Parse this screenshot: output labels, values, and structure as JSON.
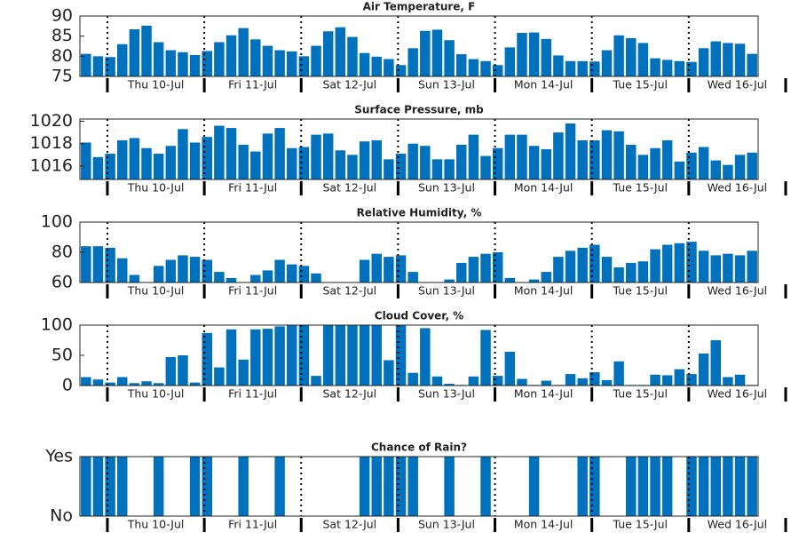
{
  "chart_data": [
    {
      "type": "bar",
      "title": "Air Temperature, F",
      "color": "#0072bd",
      "xtick_labels": [
        "Thu 10-Jul",
        "Fri 11-Jul",
        "Sat 12-Jul",
        "Sun 13-Jul",
        "Mon 14-Jul",
        "Tue 15-Jul",
        "Wed 16-Jul"
      ],
      "values": [
        80.6,
        80,
        79.8,
        83,
        86.7,
        87.6,
        83.5,
        81.5,
        81,
        80.3,
        81.3,
        83.5,
        85.2,
        87,
        84.2,
        82.6,
        81.5,
        81.2,
        80,
        82.6,
        86.2,
        87.2,
        84.8,
        80.8,
        79.9,
        79.3,
        77.8,
        82,
        86.3,
        86.6,
        84,
        80.5,
        79.3,
        78.8,
        77.8,
        82.2,
        85.8,
        85.9,
        84.3,
        80.2,
        78.8,
        78.8,
        78.7,
        81.5,
        85.2,
        84.5,
        83.3,
        79.5,
        79.1,
        78.8,
        78.6,
        82,
        83.7,
        83.3,
        83.1,
        80.6
      ],
      "ylim": [
        75,
        90
      ],
      "yticks": [
        75,
        80,
        85,
        90
      ]
    },
    {
      "type": "bar",
      "title": "Surface Pressure, mb",
      "color": "#0072bd",
      "xtick_labels": [
        "Thu 10-Jul",
        "Fri 11-Jul",
        "Sat 12-Jul",
        "Sun 13-Jul",
        "Mon 14-Jul",
        "Tue 15-Jul",
        "Wed 16-Jul"
      ],
      "values": [
        1018.1,
        1016.8,
        1017.1,
        1018.3,
        1018.5,
        1017.6,
        1017.1,
        1017.8,
        1019.3,
        1018.1,
        1018.6,
        1019.6,
        1019.4,
        1017.9,
        1017.3,
        1018.9,
        1019.4,
        1017.6,
        1017.7,
        1018.8,
        1018.9,
        1017.4,
        1017.0,
        1018.2,
        1018.3,
        1016.6,
        1017.1,
        1018.0,
        1017.8,
        1016.6,
        1016.6,
        1017.9,
        1018.8,
        1016.9,
        1017.6,
        1018.8,
        1018.8,
        1017.8,
        1017.5,
        1019.0,
        1019.8,
        1018.3,
        1018.3,
        1019.2,
        1019.1,
        1017.9,
        1017.0,
        1017.6,
        1018.3,
        1016.4,
        1017.2,
        1017.7,
        1016.5,
        1016.1,
        1017.0,
        1017.2
      ],
      "ylim": [
        1014.8,
        1020.2
      ],
      "yticks": [
        1016,
        1018,
        1020
      ]
    },
    {
      "type": "bar",
      "title": "Relative Humidity, %",
      "color": "#0072bd",
      "xtick_labels": [
        "Thu 10-Jul",
        "Fri 11-Jul",
        "Sat 12-Jul",
        "Sun 13-Jul",
        "Mon 14-Jul",
        "Tue 15-Jul",
        "Wed 16-Jul"
      ],
      "values": [
        84,
        84,
        83,
        76,
        65,
        60,
        71,
        75,
        78,
        77,
        75,
        67,
        63,
        60,
        65,
        68,
        75,
        72,
        71,
        66,
        60,
        60,
        60,
        75,
        79,
        77,
        78,
        67,
        60,
        60,
        62,
        73,
        77,
        79,
        80,
        63,
        60,
        62,
        67,
        77,
        81,
        83,
        85,
        77,
        70,
        73,
        74,
        82,
        85,
        86,
        87,
        81,
        78,
        79,
        78,
        81
      ],
      "ylim": [
        60,
        100
      ],
      "yticks": [
        60,
        80,
        100
      ]
    },
    {
      "type": "bar",
      "title": "Cloud Cover, %",
      "color": "#0072bd",
      "xtick_labels": [
        "Thu 10-Jul",
        "Fri 11-Jul",
        "Sat 12-Jul",
        "Sun 13-Jul",
        "Mon 14-Jul",
        "Tue 15-Jul",
        "Wed 16-Jul"
      ],
      "values": [
        14,
        10,
        5,
        14,
        4,
        7,
        4,
        47,
        50,
        5,
        87,
        30,
        93,
        43,
        93,
        94,
        98,
        100,
        100,
        16,
        100,
        100,
        100,
        100,
        100,
        42,
        100,
        21,
        95,
        15,
        3,
        1,
        15,
        92,
        16,
        56,
        11,
        1,
        8,
        1,
        19,
        12,
        22,
        9,
        40,
        1,
        1,
        18,
        17,
        27,
        19,
        53,
        75,
        14,
        18,
        1
      ],
      "ylim": [
        0,
        100
      ],
      "yticks": [
        0,
        50,
        100
      ]
    },
    {
      "type": "bar",
      "title": "Chance of Rain?",
      "color": "#0072bd",
      "xtick_labels": [
        "Thu 10-Jul",
        "Fri 11-Jul",
        "Sat 12-Jul",
        "Sun 13-Jul",
        "Mon 14-Jul",
        "Tue 15-Jul",
        "Wed 16-Jul"
      ],
      "values": [
        1,
        1,
        1,
        1,
        0,
        0,
        1,
        0,
        0,
        1,
        1,
        0,
        0,
        1,
        0,
        0,
        1,
        0,
        0,
        0,
        0,
        0,
        0,
        1,
        1,
        1,
        1,
        1,
        0,
        0,
        1,
        0,
        0,
        1,
        0,
        0,
        0,
        1,
        0,
        0,
        0,
        1,
        1,
        0,
        0,
        1,
        1,
        1,
        1,
        0,
        1,
        1,
        1,
        1,
        1,
        1
      ],
      "ylim": [
        0,
        1
      ],
      "yticks": [
        {
          "value": 0,
          "label": "No"
        },
        {
          "value": 1,
          "label": "Yes"
        }
      ]
    }
  ]
}
